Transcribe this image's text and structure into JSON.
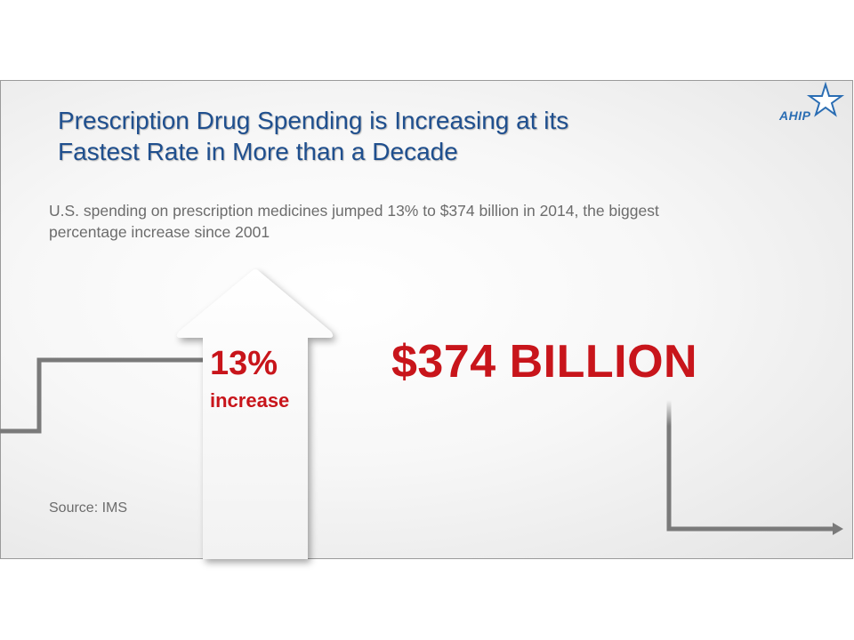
{
  "slide": {
    "title_line1": "Prescription Drug Spending is Increasing at its",
    "title_line2": "Fastest Rate in More than a Decade",
    "subtitle_line1": "U.S. spending on prescription medicines jumped 13% to $374 billion in 2014, the biggest",
    "subtitle_line2": "percentage increase since 2001",
    "logo_text": "AHIP",
    "arrow_percent": "13%",
    "arrow_label": "increase",
    "amount": "$374 BILLION",
    "source": "Source: IMS"
  },
  "colors": {
    "title": "#1f4f8e",
    "accent_red": "#c8151b",
    "body_gray": "#6c6c6c",
    "logo_blue": "#2a6db3"
  }
}
